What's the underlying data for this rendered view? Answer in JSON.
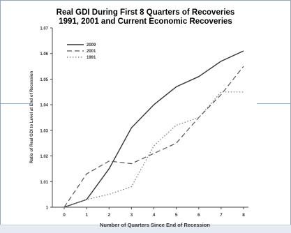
{
  "chart_data": {
    "type": "line",
    "title_lines": [
      "Real GDI During First 8 Quarters of Recoveries",
      "1991, 2001 and Current Economic Recoveries"
    ],
    "xlabel": "Number of Quarters Since End of Recession",
    "ylabel": "Ratio of Real GDI to Level at End of Recession",
    "x": [
      0,
      1,
      2,
      3,
      4,
      5,
      6,
      7,
      8
    ],
    "xlim": [
      0,
      8
    ],
    "ylim": [
      1.0,
      1.07
    ],
    "y_ticks": [
      "1",
      "1.01",
      "1.02",
      "1.03",
      "1.04",
      "1.05",
      "1.06",
      "1.07"
    ],
    "x_ticks": [
      "0",
      "1",
      "2",
      "3",
      "4",
      "5",
      "6",
      "7",
      "8"
    ],
    "grid": false,
    "legend_position": "top-left",
    "series": [
      {
        "name": "2009",
        "style": "solid",
        "color": "#333333",
        "values": [
          1.0,
          1.003,
          1.015,
          1.031,
          1.04,
          1.047,
          1.051,
          1.057,
          1.061
        ]
      },
      {
        "name": "2001",
        "style": "dashed",
        "color": "#555555",
        "values": [
          1.0,
          1.013,
          1.018,
          1.017,
          1.021,
          1.025,
          1.035,
          1.044,
          1.055
        ]
      },
      {
        "name": "1991",
        "style": "dotted",
        "color": "#777777",
        "values": [
          1.0,
          1.003,
          1.005,
          1.008,
          1.024,
          1.032,
          1.035,
          1.045,
          1.045
        ]
      }
    ]
  }
}
